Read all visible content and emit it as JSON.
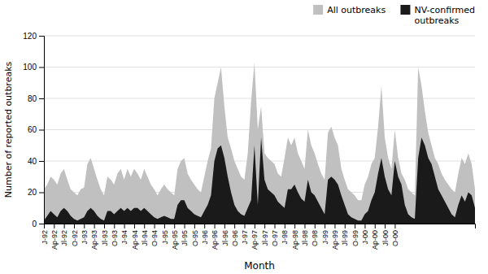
{
  "chart_data": {
    "type": "area",
    "xlabel": "Month",
    "ylabel": "Number of reported outbreaks",
    "categories": [
      "J-92",
      null,
      null,
      "Ap-92",
      null,
      null,
      "Jl-92",
      null,
      null,
      "O-92",
      null,
      null,
      "J-93",
      null,
      null,
      "Ap-93",
      null,
      null,
      "Jl-93",
      null,
      null,
      "O-93",
      null,
      null,
      "J-94",
      null,
      null,
      "Ap-94",
      null,
      null,
      "Jl-94",
      null,
      null,
      "O-94",
      null,
      null,
      "J-95",
      null,
      null,
      "Ap-95",
      null,
      null,
      "Jl-95",
      null,
      null,
      "O-95",
      null,
      null,
      "J-96",
      null,
      null,
      "Ap-96",
      null,
      null,
      "Jl-96",
      null,
      null,
      "O-96",
      null,
      null,
      "J-97",
      null,
      null,
      "Ap-97",
      null,
      null,
      "Jl-97",
      null,
      null,
      "O-97",
      null,
      null,
      "J-98",
      null,
      null,
      "Ap-98",
      null,
      null,
      "Jl-98",
      null,
      null,
      "O-98",
      null,
      null,
      "J-99",
      null,
      null,
      "Ap-99",
      null,
      null,
      "Jl-99",
      null,
      null,
      "O-99",
      null,
      null,
      "J-00",
      null,
      null,
      "Ap-00",
      null,
      null,
      "Jl-00",
      null,
      null,
      "O-00",
      null,
      null,
      null,
      null,
      null,
      null,
      null,
      null,
      null,
      null,
      null,
      null,
      null,
      null,
      null,
      null,
      null,
      null,
      null,
      null,
      null,
      null,
      null,
      null
    ],
    "series": [
      {
        "name": "All outbreaks",
        "color": "#c0c0c0",
        "values": [
          22,
          25,
          30,
          28,
          25,
          32,
          35,
          28,
          22,
          20,
          18,
          22,
          23,
          38,
          42,
          35,
          28,
          22,
          18,
          30,
          28,
          25,
          32,
          35,
          28,
          35,
          30,
          35,
          32,
          28,
          35,
          30,
          25,
          22,
          18,
          22,
          25,
          22,
          20,
          18,
          35,
          40,
          42,
          32,
          28,
          25,
          22,
          20,
          30,
          40,
          48,
          80,
          90,
          100,
          75,
          55,
          48,
          40,
          35,
          30,
          28,
          45,
          78,
          103,
          60,
          75,
          45,
          42,
          40,
          38,
          32,
          30,
          42,
          55,
          50,
          55,
          45,
          40,
          35,
          60,
          50,
          45,
          38,
          32,
          28,
          58,
          62,
          55,
          50,
          35,
          28,
          22,
          20,
          18,
          15,
          15,
          25,
          30,
          38,
          42,
          62,
          88,
          55,
          42,
          35,
          60,
          42,
          32,
          28,
          22,
          20,
          18,
          100,
          88,
          72,
          58,
          50,
          42,
          38,
          32,
          28,
          25,
          22,
          20,
          32,
          42,
          38,
          45,
          38,
          22
        ]
      },
      {
        "name": "NV-confirmed\noutbreaks",
        "color": "#1a1a1a",
        "values": [
          2,
          5,
          8,
          6,
          4,
          8,
          10,
          8,
          5,
          3,
          2,
          3,
          4,
          8,
          10,
          8,
          5,
          3,
          2,
          8,
          8,
          6,
          8,
          10,
          8,
          10,
          8,
          10,
          10,
          8,
          10,
          8,
          6,
          4,
          3,
          4,
          5,
          4,
          3,
          3,
          12,
          15,
          15,
          10,
          8,
          6,
          5,
          4,
          8,
          12,
          18,
          40,
          48,
          50,
          42,
          30,
          20,
          12,
          8,
          6,
          5,
          10,
          15,
          50,
          12,
          55,
          28,
          22,
          20,
          18,
          14,
          12,
          10,
          22,
          22,
          25,
          20,
          16,
          14,
          28,
          20,
          18,
          14,
          10,
          6,
          28,
          30,
          28,
          25,
          18,
          12,
          6,
          4,
          3,
          2,
          2,
          6,
          8,
          15,
          20,
          32,
          42,
          30,
          22,
          18,
          40,
          30,
          25,
          12,
          6,
          4,
          3,
          42,
          55,
          50,
          42,
          38,
          30,
          22,
          18,
          14,
          10,
          6,
          4,
          12,
          18,
          14,
          20,
          18,
          10
        ]
      }
    ],
    "ylim": [
      0,
      120
    ],
    "yticks": [
      0,
      20,
      40,
      60,
      80,
      100,
      120
    ],
    "grid": true,
    "stacked": false,
    "legend": "upper right"
  }
}
